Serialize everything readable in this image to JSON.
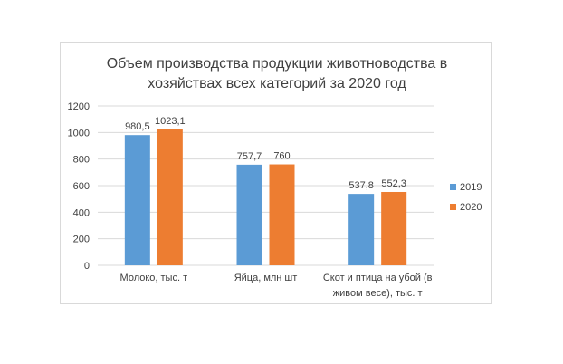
{
  "chart_data": {
    "type": "bar",
    "title_lines": [
      "Объем производства продукции животноводства в",
      "хозяйствах всех категорий за 2020 год"
    ],
    "categories": [
      [
        "Молоко, тыс. т"
      ],
      [
        "Яйца, млн шт"
      ],
      [
        "Скот и птица на убой (в",
        "живом весе),  тыс. т"
      ]
    ],
    "series": [
      {
        "name": "2019",
        "color": "#5b9bd5",
        "values": [
          980.5,
          757.7,
          537.8
        ],
        "labels": [
          "980,5",
          "757,7",
          "537,8"
        ]
      },
      {
        "name": "2020",
        "color": "#ed7d31",
        "values": [
          1023.1,
          760,
          552.3
        ],
        "labels": [
          "1023,1",
          "760",
          "552,3"
        ]
      }
    ],
    "yticks": [
      "0",
      "200",
      "400",
      "600",
      "800",
      "1000",
      "1200"
    ],
    "ylim": [
      0,
      1200
    ],
    "grid": true,
    "legend_position": "right",
    "gridline_color": "#d9d9d9"
  }
}
